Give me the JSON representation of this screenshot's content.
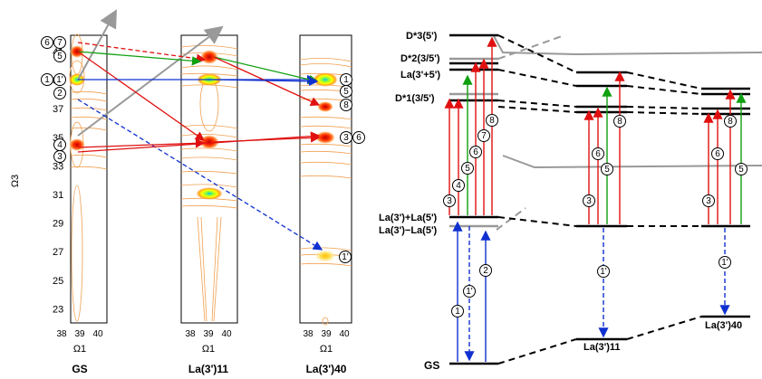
{
  "left_panels": {
    "y_axis_label": "Ω3",
    "x_axis_label": "Ω1",
    "y_ticks": [
      "41",
      "39",
      "37",
      "35",
      "33",
      "31",
      "29",
      "27",
      "25",
      "23"
    ],
    "x_ticks": [
      "38",
      "39",
      "40"
    ],
    "panel_titles": {
      "gs": "GS",
      "la11": "La(3')11",
      "la40": "La(3')40"
    },
    "peak_labels_gs": [
      "6",
      "7",
      "5",
      "1",
      "1'",
      "2",
      "4",
      "3"
    ],
    "peak_labels_la40": [
      "1",
      "5",
      "8",
      "3",
      "6",
      "1'"
    ],
    "colors": {
      "red": "#e01010",
      "green": "#10a010",
      "blue": "#1030d0",
      "gray": "#999999",
      "contour": "#f0a050"
    }
  },
  "right_diagram": {
    "levels": {
      "d3": "D*3(5')",
      "d2": "D*2(3/5')",
      "la35": "La(3'+5')",
      "d1": "D*1(3/5')",
      "laplus": "La(3')+La(5')",
      "laminus": "La(3')−La(5')",
      "gs": "GS",
      "la11": "La(3')11",
      "la40": "La(3')40"
    },
    "transition_labels_gs": [
      "1",
      "1'",
      "2",
      "3",
      "4",
      "5",
      "6",
      "7",
      "8"
    ],
    "transition_labels_la11": [
      "3",
      "6",
      "5",
      "8",
      "1'"
    ],
    "transition_labels_la40": [
      "3",
      "6",
      "8",
      "5",
      "1'"
    ]
  }
}
